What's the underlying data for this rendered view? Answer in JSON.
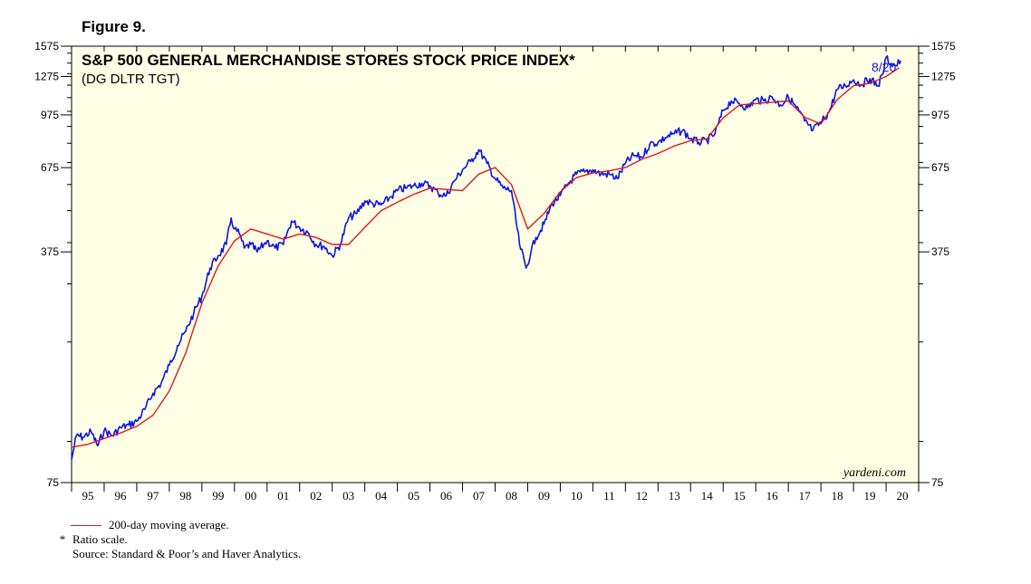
{
  "figure_label": "Figure 9.",
  "colors": {
    "background": "#ffffe6",
    "index_line": "#0a14e6",
    "moving_average": "#e0181c",
    "frame": "#000000"
  },
  "legend": {
    "moving_average_label": "200-day moving average."
  },
  "footnotes": {
    "ratio_mark": "*",
    "ratio_text": "Ratio scale.",
    "source": "Source: Standard & Poor’s and Haver Analytics."
  },
  "watermark": "yardeni.com",
  "chart_data": {
    "type": "line",
    "title": "S&P 500 GENERAL MERCHANDISE STORES STOCK PRICE INDEX*",
    "subtitle": "(DG DLTR TGT)",
    "y_scale": "log",
    "ylim": [
      75,
      1575
    ],
    "xlim": [
      1995.0,
      2021.0
    ],
    "y_ticks_labeled": [
      75,
      375,
      675,
      975,
      1275,
      1575
    ],
    "x_tick_labels": [
      "95",
      "96",
      "97",
      "98",
      "99",
      "00",
      "01",
      "02",
      "03",
      "04",
      "05",
      "06",
      "07",
      "08",
      "09",
      "10",
      "11",
      "12",
      "13",
      "14",
      "15",
      "16",
      "17",
      "18",
      "19",
      "20"
    ],
    "last_value_label": "8/20",
    "legend_placement": "bottom-left",
    "grid": false,
    "series": [
      {
        "name": "",
        "color": "#0a14e6",
        "x": [
          1995.0,
          1995.15,
          1995.35,
          1995.6,
          1995.8,
          1996.0,
          1996.25,
          1996.5,
          1996.75,
          1997.0,
          1997.25,
          1997.5,
          1997.75,
          1998.0,
          1998.25,
          1998.5,
          1998.75,
          1999.0,
          1999.25,
          1999.5,
          1999.75,
          1999.9,
          2000.0,
          2000.15,
          2000.3,
          2000.5,
          2000.7,
          2000.9,
          2001.0,
          2001.25,
          2001.5,
          2001.75,
          2002.0,
          2002.25,
          2002.5,
          2002.75,
          2003.0,
          2003.25,
          2003.5,
          2003.75,
          2004.0,
          2004.25,
          2004.5,
          2004.75,
          2005.0,
          2005.25,
          2005.5,
          2005.75,
          2006.0,
          2006.25,
          2006.5,
          2006.75,
          2007.0,
          2007.25,
          2007.5,
          2007.75,
          2008.0,
          2008.25,
          2008.5,
          2008.75,
          2008.95,
          2009.1,
          2009.25,
          2009.5,
          2009.75,
          2010.0,
          2010.25,
          2010.5,
          2010.75,
          2011.0,
          2011.25,
          2011.5,
          2011.75,
          2012.0,
          2012.25,
          2012.5,
          2012.75,
          2013.0,
          2013.25,
          2013.5,
          2013.75,
          2014.0,
          2014.25,
          2014.5,
          2014.75,
          2015.0,
          2015.25,
          2015.5,
          2015.75,
          2016.0,
          2016.25,
          2016.5,
          2016.75,
          2017.0,
          2017.25,
          2017.5,
          2017.75,
          2018.0,
          2018.25,
          2018.5,
          2018.75,
          2019.0,
          2019.25,
          2019.5,
          2019.75,
          2019.9,
          2020.0,
          2020.15,
          2020.3,
          2020.45
        ],
        "values": [
          88,
          104,
          103,
          107,
          97,
          108,
          104,
          110,
          112,
          115,
          125,
          140,
          150,
          170,
          195,
          215,
          245,
          275,
          335,
          365,
          395,
          475,
          440,
          425,
          385,
          395,
          375,
          395,
          405,
          385,
          395,
          465,
          445,
          430,
          395,
          390,
          365,
          395,
          475,
          490,
          535,
          525,
          520,
          545,
          575,
          585,
          595,
          605,
          595,
          565,
          555,
          615,
          665,
          705,
          765,
          695,
          625,
          585,
          575,
          395,
          335,
          375,
          415,
          455,
          525,
          555,
          605,
          645,
          655,
          665,
          645,
          645,
          625,
          695,
          735,
          725,
          795,
          805,
          835,
          855,
          875,
          825,
          805,
          815,
          855,
          1005,
          1075,
          1055,
          1025,
          1085,
          1075,
          1105,
          1045,
          1105,
          1025,
          935,
          875,
          925,
          995,
          1165,
          1195,
          1245,
          1205,
          1255,
          1195,
          1295,
          1455,
          1395,
          1375,
          1425
        ]
      },
      {
        "name": "",
        "color": "#e0181c",
        "x": [
          1995.0,
          1995.5,
          1996.0,
          1996.5,
          1997.0,
          1997.5,
          1998.0,
          1998.5,
          1999.0,
          1999.5,
          2000.0,
          2000.5,
          2001.0,
          2001.5,
          2002.0,
          2002.5,
          2003.0,
          2003.5,
          2004.0,
          2004.5,
          2005.0,
          2005.5,
          2006.0,
          2006.5,
          2007.0,
          2007.5,
          2008.0,
          2008.5,
          2009.0,
          2009.5,
          2010.0,
          2010.5,
          2011.0,
          2011.5,
          2012.0,
          2012.5,
          2013.0,
          2013.5,
          2014.0,
          2014.5,
          2015.0,
          2015.5,
          2016.0,
          2016.5,
          2017.0,
          2017.5,
          2018.0,
          2018.5,
          2019.0,
          2019.5,
          2020.0,
          2020.4
        ],
        "values": [
          96,
          98,
          102,
          106,
          111,
          120,
          142,
          185,
          262,
          340,
          405,
          440,
          425,
          410,
          425,
          415,
          395,
          395,
          445,
          500,
          530,
          560,
          585,
          580,
          575,
          645,
          675,
          600,
          440,
          490,
          570,
          630,
          650,
          660,
          675,
          715,
          745,
          785,
          815,
          825,
          955,
          1045,
          1055,
          1065,
          1075,
          960,
          915,
          1085,
          1195,
          1215,
          1275,
          1355
        ]
      }
    ]
  }
}
